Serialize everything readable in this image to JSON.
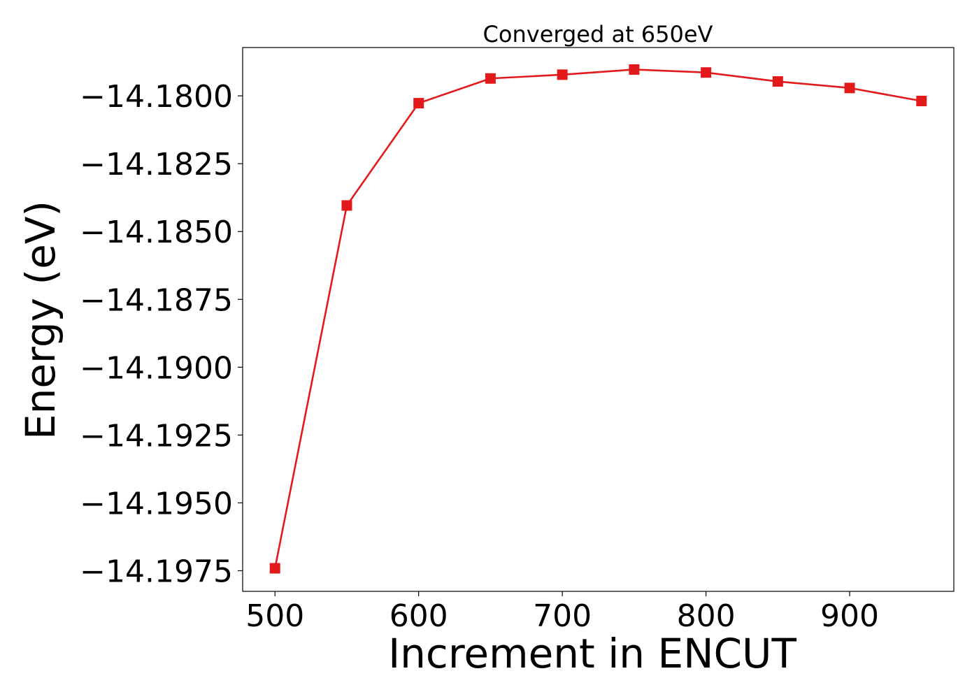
{
  "chart_data": {
    "type": "line",
    "title": "Converged at 650eV",
    "xlabel": "Increment in ENCUT",
    "ylabel": "Energy (eV)",
    "x": [
      500,
      550,
      600,
      650,
      700,
      750,
      800,
      850,
      900,
      950
    ],
    "series": [
      {
        "values": [
          -14.19741,
          -14.18404,
          -14.18027,
          -14.17936,
          -14.17922,
          -14.17903,
          -14.17914,
          -14.17947,
          -14.17971,
          -14.18019
        ],
        "color": "#e31a1c",
        "marker": "square"
      }
    ],
    "xlim": [
      477.5,
      972.5
    ],
    "ylim": [
      -14.19826,
      -14.17822
    ],
    "xticks": [
      500,
      600,
      700,
      800,
      900
    ],
    "xtick_labels": [
      "500",
      "600",
      "700",
      "800",
      "900"
    ],
    "yticks": [
      -14.18,
      -14.1825,
      -14.185,
      -14.1875,
      -14.19,
      -14.1925,
      -14.195,
      -14.1975
    ],
    "ytick_labels": [
      "−14.1800",
      "−14.1825",
      "−14.1850",
      "−14.1875",
      "−14.1900",
      "−14.1925",
      "−14.1950",
      "−14.1975"
    ],
    "grid": false,
    "legend": "none"
  }
}
